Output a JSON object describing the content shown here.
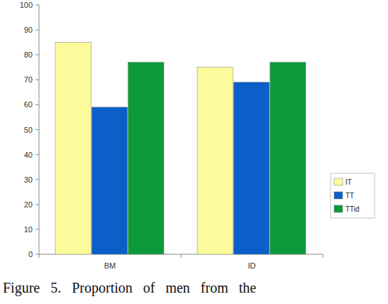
{
  "chart_data": {
    "type": "bar",
    "caption": "Figure 5. Proportion of men from the",
    "categories": [
      "BM",
      "ID"
    ],
    "series": [
      {
        "name": "IT",
        "color": "#fbfb9c",
        "values": [
          85,
          75
        ]
      },
      {
        "name": "TT",
        "color": "#0a5fc8",
        "values": [
          59,
          69
        ]
      },
      {
        "name": "TTid",
        "color": "#0d9a3a",
        "values": [
          77,
          77
        ]
      }
    ],
    "ylim": [
      0,
      100
    ],
    "yticks": [
      0,
      10,
      20,
      30,
      40,
      50,
      60,
      70,
      80,
      90,
      100
    ],
    "grid": false,
    "legend": "right"
  }
}
